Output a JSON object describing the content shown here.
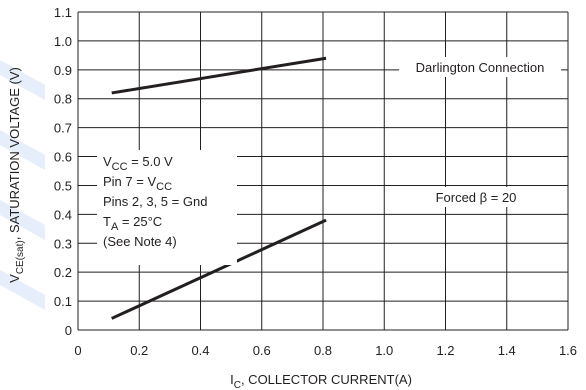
{
  "colors": {
    "line": "#231f20",
    "background": "#ffffff",
    "watermark": "#cfe0f5"
  },
  "chart_data": {
    "type": "line",
    "xlabel_main": "I",
    "xlabel_sub": "C",
    "xlabel_rest": ", COLLECTOR CURRENT(A)",
    "ylabel_main": "V",
    "ylabel_sub": "CE(sat)",
    "ylabel_rest": ", SATURATION VOLTAGE (V)",
    "xlim": [
      0,
      1.6
    ],
    "ylim": [
      0,
      1.1
    ],
    "xticks": [
      "0",
      "0.2",
      "0.4",
      "0.6",
      "0.8",
      "1.0",
      "1.2",
      "1.4",
      "1.6"
    ],
    "yticks": [
      "0",
      "0.1",
      "0.2",
      "0.3",
      "0.4",
      "0.5",
      "0.6",
      "0.7",
      "0.8",
      "0.9",
      "1.0",
      "1.1"
    ],
    "grid": true,
    "series": [
      {
        "name": "Darlington Connection",
        "x": [
          0.11,
          0.81
        ],
        "y": [
          0.82,
          0.94
        ]
      },
      {
        "name": "Forced β = 20",
        "x": [
          0.11,
          0.81
        ],
        "y": [
          0.04,
          0.38
        ]
      }
    ],
    "conditions": [
      {
        "main": "V",
        "sub": "CC",
        "rest": " = 5.0 V"
      },
      {
        "main": "Pin 7 = V",
        "sub": "CC",
        "rest": ""
      },
      {
        "main": "Pins 2, 3, 5 = Gnd",
        "sub": "",
        "rest": ""
      },
      {
        "main": "T",
        "sub": "A",
        "rest": " = 25°C"
      },
      {
        "main": "(See Note 4)",
        "sub": "",
        "rest": ""
      }
    ]
  }
}
